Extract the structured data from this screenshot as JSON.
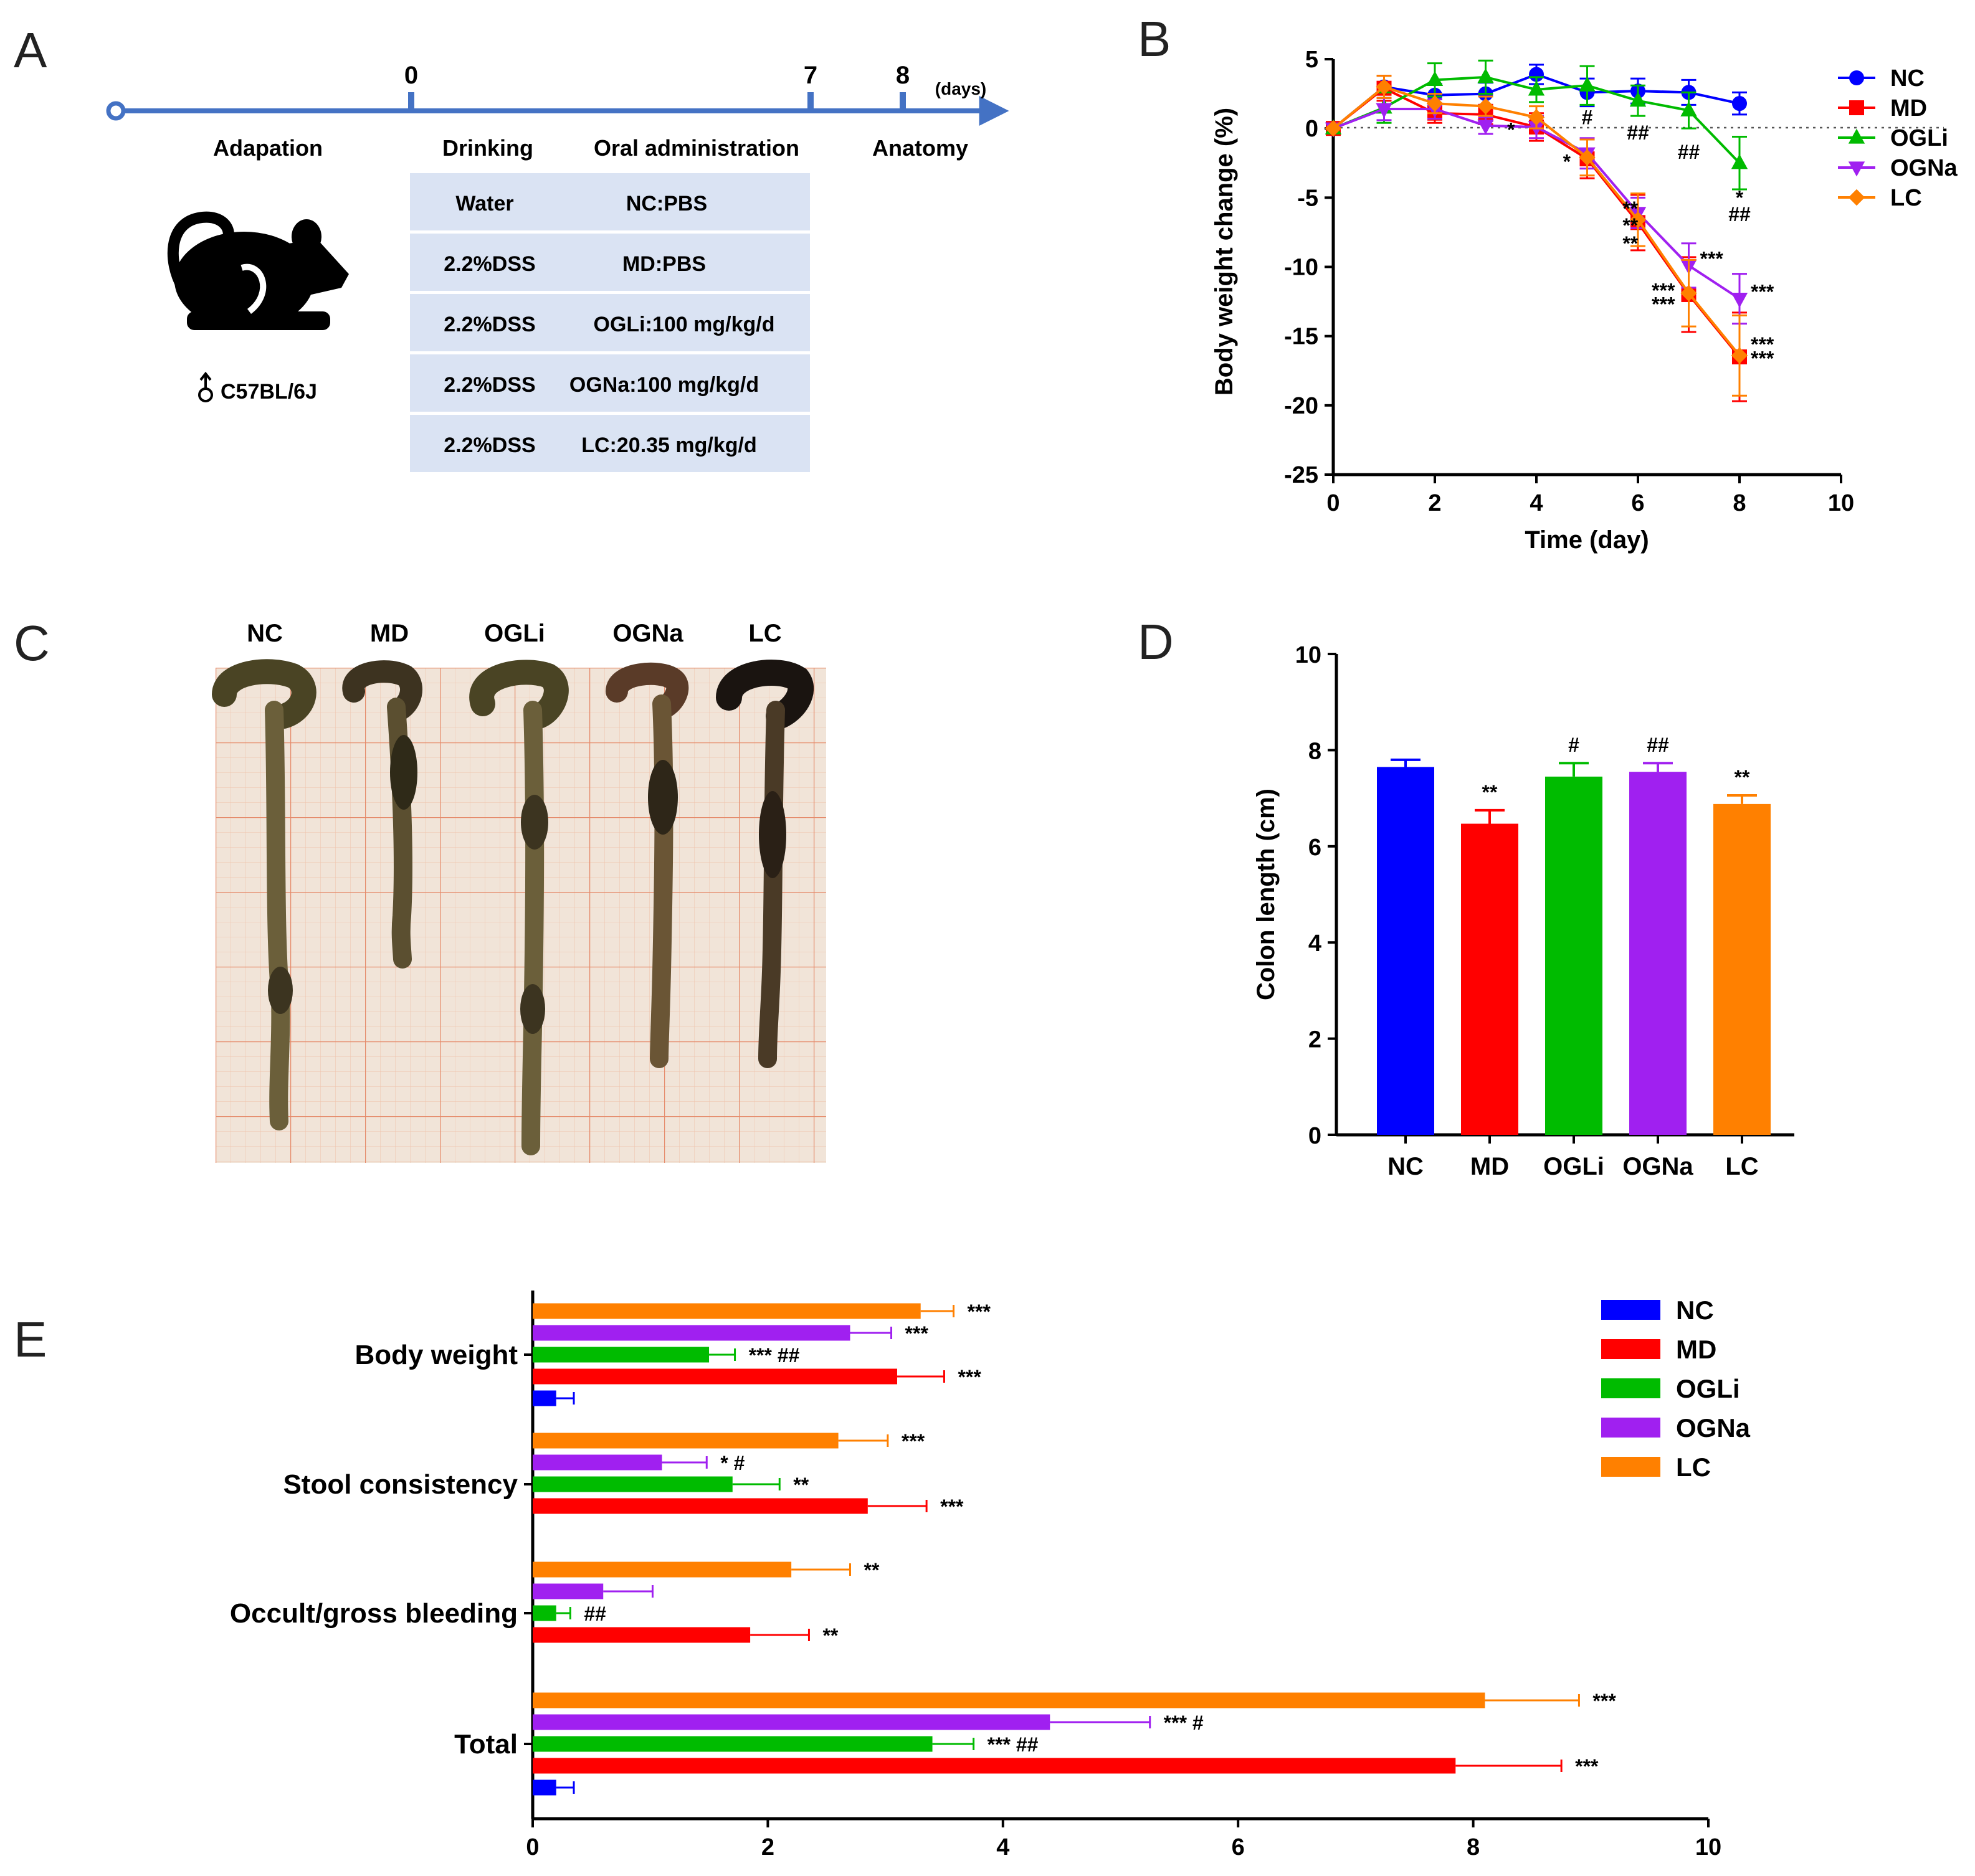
{
  "colors": {
    "NC": "#0000ff",
    "MD": "#ff0000",
    "OGLi": "#00bb00",
    "OGNa": "#a020f0",
    "LC": "#ff8000",
    "timeline": "#4472c4",
    "table_fill": "#dae3f3",
    "photo_bg": "#f1e4d8",
    "grid_major": "#e58a6a",
    "grid_minor": "#f0c2aa"
  },
  "panels": {
    "A": {
      "letter": "A",
      "ticks": [
        "0",
        "7",
        "8"
      ],
      "days_label": "(days)",
      "phases": [
        "Adapation",
        "Drinking",
        "Oral administration",
        "Anatomy"
      ],
      "rows": [
        {
          "drink": "Water",
          "oral": "NC:PBS"
        },
        {
          "drink": "2.2%DSS",
          "oral": "MD:PBS"
        },
        {
          "drink": "2.2%DSS",
          "oral": "OGLi:100 mg/kg/d"
        },
        {
          "drink": "2.2%DSS",
          "oral": "OGNa:100 mg/kg/d"
        },
        {
          "drink": "2.2%DSS",
          "oral": "LC:20.35 mg/kg/d"
        }
      ],
      "mouse_icon": "mouse-icon",
      "male_icon": "male-symbol-icon",
      "strain": "C57BL/6J"
    },
    "B": {
      "letter": "B"
    },
    "C": {
      "letter": "C",
      "labels": [
        "NC",
        "MD",
        "OGLi",
        "OGNa",
        "LC"
      ]
    },
    "D": {
      "letter": "D"
    },
    "E": {
      "letter": "E"
    }
  },
  "chart_data": [
    {
      "id": "B",
      "type": "line",
      "title": "",
      "xlabel": "Time (day)",
      "ylabel": "Body weight change (%)",
      "xlim": [
        0,
        10
      ],
      "ylim": [
        -25,
        5
      ],
      "xticks": [
        0,
        2,
        4,
        6,
        8,
        10
      ],
      "yticks": [
        5,
        0,
        -5,
        -10,
        -15,
        -20,
        -25
      ],
      "x": [
        0,
        1,
        2,
        3,
        4,
        5,
        6,
        7,
        8
      ],
      "legend_position": "right",
      "series": [
        {
          "name": "NC",
          "marker": "circle",
          "values": [
            0,
            3.0,
            2.4,
            2.5,
            3.9,
            2.6,
            2.7,
            2.6,
            1.8
          ],
          "errors": [
            0,
            0.8,
            0.8,
            0.8,
            0.7,
            1.0,
            0.9,
            0.9,
            0.8
          ]
        },
        {
          "name": "MD",
          "marker": "square",
          "values": [
            0,
            2.9,
            1.1,
            1.0,
            0.1,
            -2.2,
            -6.8,
            -12.0,
            -16.5
          ],
          "errors": [
            0,
            0.9,
            0.7,
            0.7,
            1.0,
            1.4,
            2.0,
            2.7,
            3.2
          ]
        },
        {
          "name": "OGLi",
          "marker": "triangle-up",
          "values": [
            0,
            1.5,
            3.5,
            3.7,
            2.8,
            3.1,
            2.0,
            1.3,
            -2.5
          ],
          "errors": [
            0,
            1.1,
            1.2,
            1.2,
            0.9,
            1.4,
            1.1,
            1.3,
            1.9
          ]
        },
        {
          "name": "OGNa",
          "marker": "triangle-down",
          "values": [
            0,
            1.4,
            1.4,
            0.2,
            0.1,
            -1.8,
            -6.1,
            -9.9,
            -12.3
          ],
          "errors": [
            0,
            0.8,
            0.7,
            0.6,
            0.8,
            1.1,
            1.1,
            1.6,
            1.8
          ]
        },
        {
          "name": "LC",
          "marker": "diamond",
          "values": [
            0,
            3.0,
            1.8,
            1.6,
            0.8,
            -2.1,
            -6.6,
            -11.9,
            -16.4
          ],
          "errors": [
            0,
            0.8,
            0.7,
            0.7,
            0.8,
            1.3,
            1.9,
            2.4,
            2.9
          ]
        }
      ],
      "annotations": [
        {
          "text": "*",
          "x": 3.5,
          "y": -0.6
        },
        {
          "text": "#",
          "x": 5.0,
          "y": 0.3
        },
        {
          "text": "*",
          "x": 4.6,
          "y": -2.9
        },
        {
          "text": "##",
          "x": 6.0,
          "y": -0.8
        },
        {
          "text": "##",
          "x": 7.0,
          "y": -2.2
        },
        {
          "text": "*",
          "x": 8.0,
          "y": -5.5
        },
        {
          "text": "##",
          "x": 8.0,
          "y": -6.7
        },
        {
          "text": "**",
          "x": 5.85,
          "y": -6.3
        },
        {
          "text": "**",
          "x": 5.85,
          "y": -7.5
        },
        {
          "text": "**",
          "x": 5.85,
          "y": -8.8
        },
        {
          "text": "***",
          "x": 7.45,
          "y": -9.9
        },
        {
          "text": "***",
          "x": 6.5,
          "y": -12.2
        },
        {
          "text": "***",
          "x": 6.5,
          "y": -13.2
        },
        {
          "text": "***",
          "x": 8.45,
          "y": -12.3
        },
        {
          "text": "***",
          "x": 8.45,
          "y": -16.1
        },
        {
          "text": "***",
          "x": 8.45,
          "y": -17.1
        }
      ]
    },
    {
      "id": "D",
      "type": "bar",
      "title": "",
      "xlabel": "",
      "ylabel": "Colon length (cm)",
      "ylim": [
        0,
        10
      ],
      "yticks": [
        0,
        2,
        4,
        6,
        8,
        10
      ],
      "categories": [
        "NC",
        "MD",
        "OGLi",
        "OGNa",
        "LC"
      ],
      "values": [
        7.65,
        6.47,
        7.45,
        7.55,
        6.88
      ],
      "errors": [
        0.15,
        0.28,
        0.28,
        0.18,
        0.18
      ],
      "significance": [
        "",
        "**",
        "#",
        "##",
        "**"
      ]
    },
    {
      "id": "E",
      "type": "bar",
      "orientation": "horizontal",
      "title": "",
      "xlabel": "",
      "ylabel": "",
      "xlim": [
        0,
        10
      ],
      "xticks": [
        0,
        2,
        4,
        6,
        8,
        10
      ],
      "categories": [
        "Body weight",
        "Stool consistency",
        "Occult/gross bleeding",
        "Total"
      ],
      "legend_position": "top-right",
      "series": [
        {
          "name": "NC",
          "values": [
            0.2,
            0,
            0,
            0.2
          ],
          "errors": [
            0.15,
            0,
            0,
            0.15
          ],
          "significance": [
            "",
            "",
            "",
            ""
          ]
        },
        {
          "name": "MD",
          "values": [
            3.1,
            2.85,
            1.85,
            7.85
          ],
          "errors": [
            0.4,
            0.5,
            0.5,
            0.9
          ],
          "significance": [
            "***",
            "***",
            "**",
            "***"
          ]
        },
        {
          "name": "OGLi",
          "values": [
            1.5,
            1.7,
            0.2,
            3.4
          ],
          "errors": [
            0.22,
            0.4,
            0.12,
            0.35
          ],
          "significance": [
            "*** ##",
            "**",
            "##",
            "*** ##"
          ]
        },
        {
          "name": "OGNa",
          "values": [
            2.7,
            1.1,
            0.6,
            4.4
          ],
          "errors": [
            0.35,
            0.38,
            0.42,
            0.85
          ],
          "significance": [
            "***",
            "* #",
            "",
            "*** #"
          ]
        },
        {
          "name": "LC",
          "values": [
            3.3,
            2.6,
            2.2,
            8.1
          ],
          "errors": [
            0.28,
            0.42,
            0.5,
            0.8
          ],
          "significance": [
            "***",
            "***",
            "**",
            "***"
          ]
        }
      ]
    }
  ]
}
